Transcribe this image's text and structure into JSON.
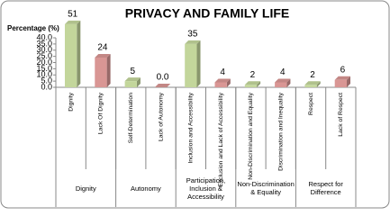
{
  "chart_data": {
    "type": "bar",
    "title": "PRIVACY AND FAMILY LIFE",
    "y_label": "Percentage (%)",
    "categories": [
      "Dignity",
      "Lack Of Dignity",
      "Self-Determination",
      "Lack of Autonomy",
      "Inclusion and Accessibility",
      "Exclusion and Lack of Accessibility",
      "Non-Discrimination and Equality",
      "Discrimination and Inequality",
      "Respect",
      "Lack of Respect"
    ],
    "values": [
      51,
      24,
      5,
      0,
      35,
      4,
      2,
      4,
      2,
      6
    ],
    "value_labels": [
      "51",
      "24",
      "5",
      "0.0",
      "35",
      "4",
      "2",
      "4",
      "2",
      "6"
    ],
    "colors": [
      "#c3d69b",
      "#d99694",
      "#c3d69b",
      "#d99694",
      "#c3d69b",
      "#d99694",
      "#c3d69b",
      "#d99694",
      "#c3d69b",
      "#d99694"
    ],
    "groups": [
      "Dignity",
      "Autonomy",
      "Participation, Inclusion & Accessibility",
      "Non-Discrimination & Equality",
      "Respect for Difference"
    ],
    "ylim": [
      0,
      40
    ],
    "yticks": [
      {
        "value": 0,
        "label": "0.0"
      },
      {
        "value": 5,
        "label": "5.0"
      },
      {
        "value": 10,
        "label": "10.0"
      },
      {
        "value": 15,
        "label": "15.0"
      },
      {
        "value": 20,
        "label": "20.0"
      },
      {
        "value": 25,
        "label": "25.0"
      },
      {
        "value": 30,
        "label": "30.0"
      },
      {
        "value": 35,
        "label": "35.0"
      },
      {
        "value": 40,
        "label": "40.0"
      }
    ]
  }
}
